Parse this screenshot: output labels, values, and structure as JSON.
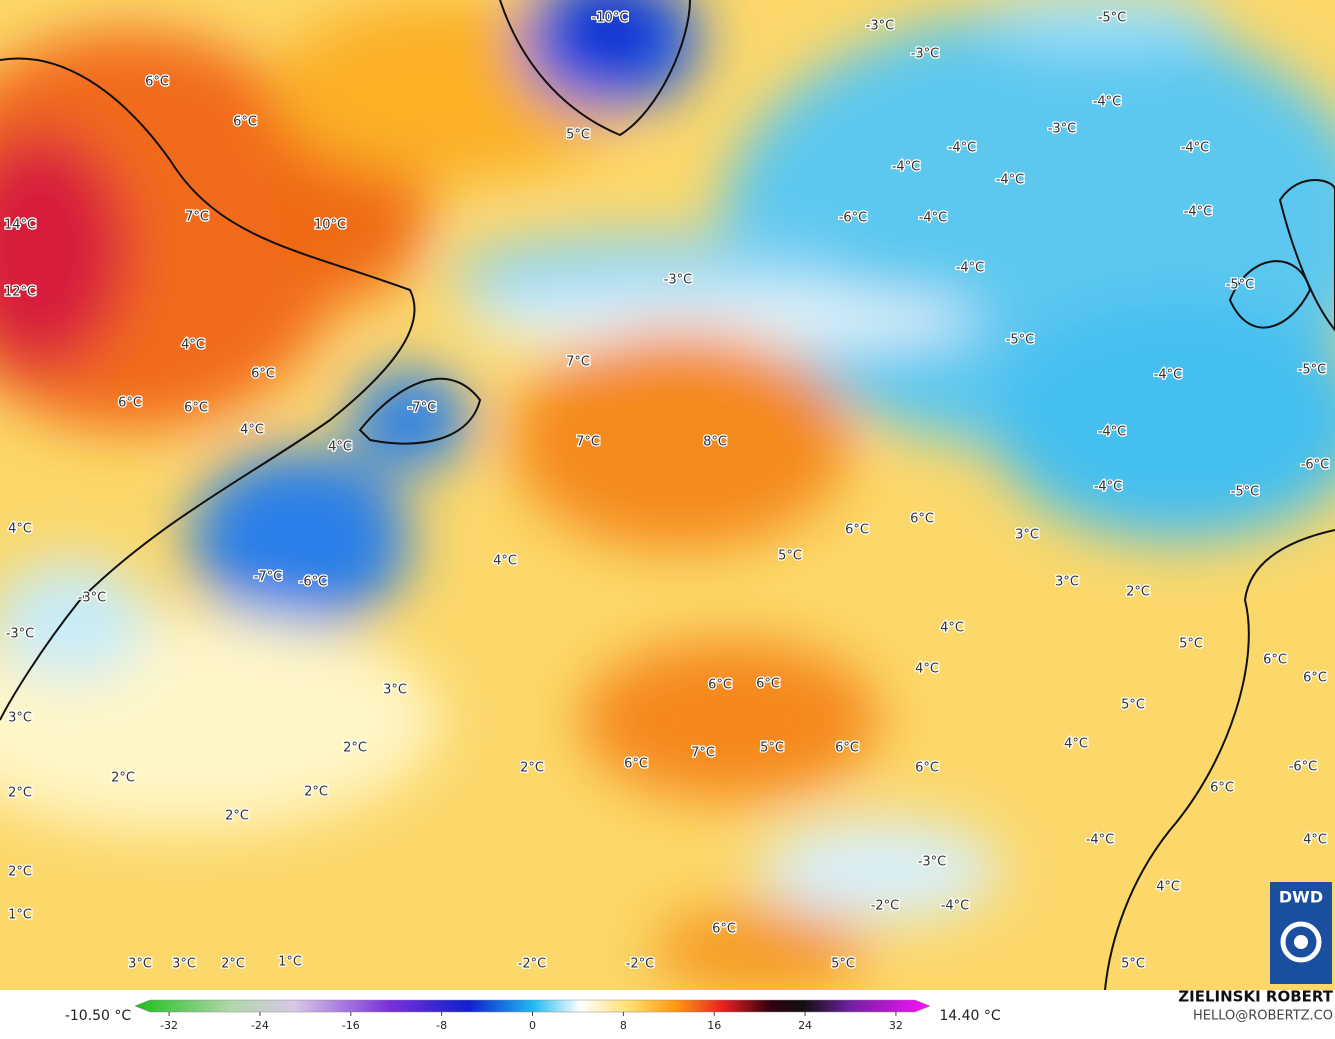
{
  "map": {
    "labels": [
      "-10°C",
      "5°C",
      "6°C",
      "6°C",
      "7°C",
      "10°C",
      "14°C",
      "12°C",
      "4°C",
      "6°C",
      "6°C",
      "6°C",
      "4°C",
      "-7°C",
      "4°C",
      "7°C",
      "7°C",
      "8°C",
      "-3°C",
      "-3°C",
      "-3°C",
      "-5°C",
      "-4°C",
      "-3°C",
      "-4°C",
      "-4°C",
      "-4°C",
      "-4°C",
      "-6°C",
      "-4°C",
      "-4°C",
      "-4°C",
      "-5°C",
      "-5°C",
      "-4°C",
      "-5°C",
      "-4°C",
      "-4°C",
      "-5°C",
      "-6°C",
      "3°C",
      "6°C",
      "6°C",
      "5°C",
      "4°C",
      "-7°C",
      "-6°C",
      "4°C",
      "-3°C",
      "-3°C",
      "3°C",
      "2°C",
      "4°C",
      "4°C",
      "5°C",
      "6°C",
      "6°C",
      "6°C",
      "6°C",
      "3°C",
      "3°C",
      "5°C",
      "4°C",
      "2°C",
      "7°C",
      "5°C",
      "6°C",
      "6°C",
      "6°C",
      "2°C",
      "2°C",
      "2°C",
      "2°C",
      "-6°C",
      "6°C",
      "2°C",
      "-4°C",
      "4°C",
      "-3°C",
      "2°C",
      "4°C",
      "-2°C",
      "-4°C",
      "1°C",
      "6°C",
      "3°C",
      "3°C",
      "2°C",
      "1°C",
      "-2°C",
      "-2°C",
      "5°C",
      "5°C"
    ]
  },
  "colorbar": {
    "min_label": "-10.50 °C",
    "max_label": "14.40 °C",
    "lim": [
      -35,
      35
    ],
    "ticks": [
      -32,
      -24,
      -16,
      -8,
      0,
      8,
      16,
      24,
      32
    ]
  },
  "credit": {
    "name": "ZIELINSKI ROBERT",
    "email": "HELLO@ROBERTZ.CO"
  },
  "logo": "DWD"
}
